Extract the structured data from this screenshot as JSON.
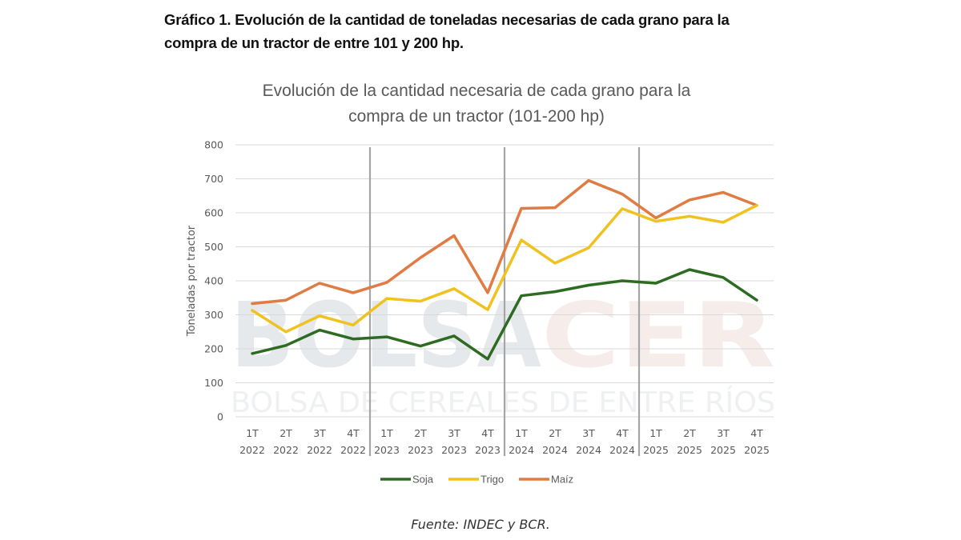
{
  "caption": {
    "line1": "Gráfico 1. Evolución de la cantidad de toneladas necesarias de cada grano para la",
    "line2": "compra de un tractor de entre 101 y 200 hp."
  },
  "source": "Fuente: INDEC y BCR.",
  "watermark": {
    "part1": "BOLSA",
    "part2": "CER",
    "subtitle": "BOLSA DE CEREALES DE ENTRE RÍOS",
    "color1": "#e6e9ec",
    "color2": "#f6ece9"
  },
  "chart_data": {
    "type": "line",
    "title": [
      "Evolución de la cantidad necesaria de cada grano para la",
      "compra de un tractor (101-200 hp)"
    ],
    "xlabel": "",
    "ylabel": "Toneladas por tractor",
    "ylim": [
      0,
      800
    ],
    "yticks": [
      0,
      100,
      200,
      300,
      400,
      500,
      600,
      700,
      800
    ],
    "grid": true,
    "legend_position": "bottom",
    "categories": [
      [
        "1T",
        "2022"
      ],
      [
        "2T",
        "2022"
      ],
      [
        "3T",
        "2022"
      ],
      [
        "4T",
        "2022"
      ],
      [
        "1T",
        "2023"
      ],
      [
        "2T",
        "2023"
      ],
      [
        "3T",
        "2023"
      ],
      [
        "4T",
        "2023"
      ],
      [
        "1T",
        "2024"
      ],
      [
        "2T",
        "2024"
      ],
      [
        "3T",
        "2024"
      ],
      [
        "4T",
        "2024"
      ],
      [
        "1T",
        "2025"
      ],
      [
        "2T",
        "2025"
      ],
      [
        "3T",
        "2025"
      ],
      [
        "4T",
        "2025"
      ]
    ],
    "year_separators_after_index": [
      3,
      7,
      11
    ],
    "series": [
      {
        "name": "Soja",
        "color": "#2e6b22",
        "values": [
          186,
          210,
          255,
          229,
          235,
          208,
          238,
          170,
          356,
          368,
          387,
          400,
          393,
          433,
          410,
          343
        ]
      },
      {
        "name": "Trigo",
        "color": "#f0c21f",
        "values": [
          313,
          250,
          297,
          270,
          348,
          340,
          377,
          315,
          520,
          452,
          497,
          612,
          575,
          590,
          572,
          622
        ]
      },
      {
        "name": "Maíz",
        "color": "#e07b43",
        "values": [
          333,
          343,
          393,
          365,
          395,
          468,
          533,
          365,
          613,
          615,
          695,
          655,
          585,
          638,
          660,
          622
        ]
      }
    ]
  }
}
